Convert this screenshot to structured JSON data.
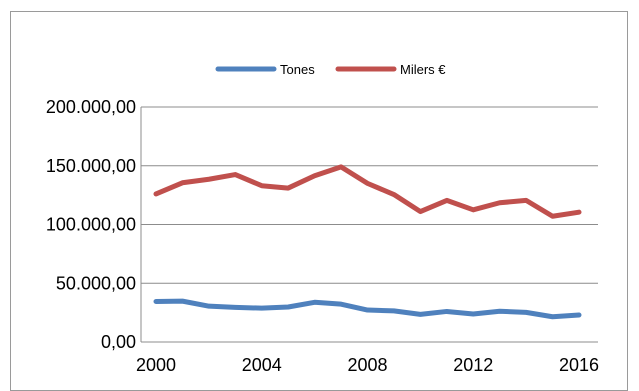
{
  "chart_data": {
    "type": "line",
    "title": "",
    "xlabel": "",
    "ylabel": "",
    "x": [
      2000,
      2001,
      2002,
      2003,
      2004,
      2005,
      2006,
      2007,
      2008,
      2009,
      2010,
      2011,
      2012,
      2013,
      2014,
      2015,
      2016
    ],
    "series": [
      {
        "name": "Tones",
        "color": "#4f81bd",
        "values": [
          34500,
          34800,
          30500,
          29500,
          28800,
          29800,
          33800,
          32200,
          27200,
          26500,
          23500,
          26000,
          23800,
          26200,
          25200,
          21500,
          23000
        ]
      },
      {
        "name": "Milers €",
        "color": "#c0504d",
        "values": [
          126000,
          135500,
          138500,
          142500,
          133000,
          131000,
          141500,
          149000,
          135000,
          125500,
          111000,
          120500,
          112500,
          118500,
          120500,
          107000,
          110500
        ]
      }
    ],
    "ylim": [
      0,
      200000
    ],
    "y_ticks": [
      "0,00",
      "50.000,00",
      "100.000,00",
      "150.000,00",
      "200.000,00"
    ],
    "x_ticks": [
      "2000",
      "2004",
      "2008",
      "2012",
      "2016"
    ],
    "grid": true,
    "legend_position": "top"
  }
}
